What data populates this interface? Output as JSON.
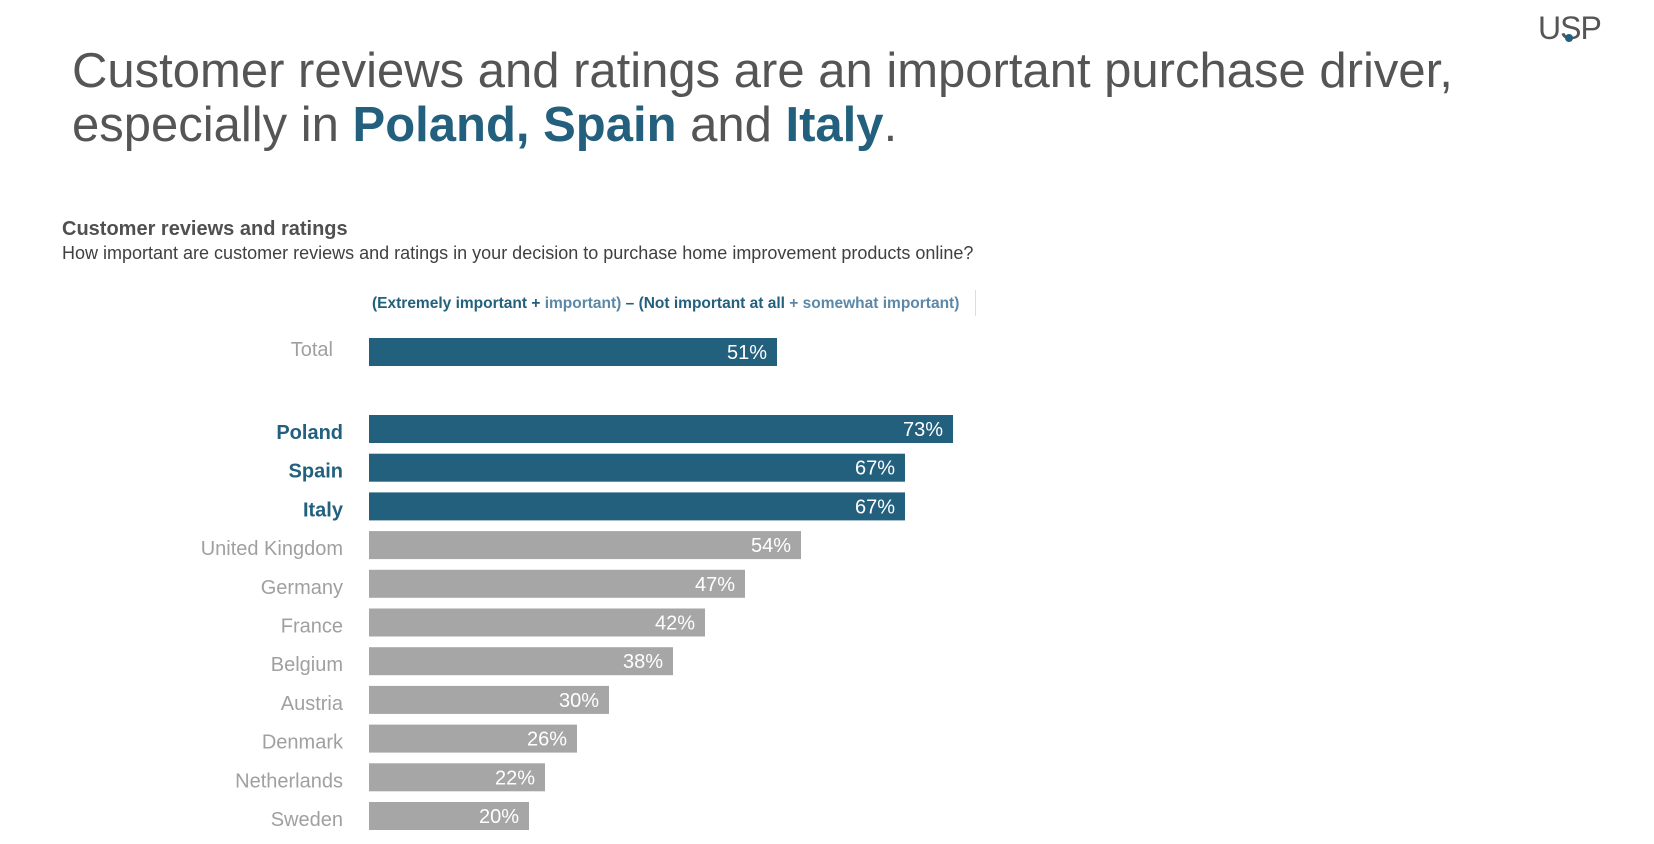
{
  "logo": {
    "text": "USP"
  },
  "headline": {
    "line1": "Customer reviews and ratings are an important purchase driver,",
    "line2_prefix": "especially in ",
    "highlight1": "Poland, Spain",
    "connector": " and ",
    "highlight2": "Italy",
    "suffix": "."
  },
  "colors": {
    "highlight": "#22607e",
    "grey_bar": "#a6a6a6",
    "grey_label": "#a0a0a0",
    "text": "#555555"
  },
  "chart_data": {
    "type": "bar",
    "orientation": "horizontal",
    "title": "Customer reviews and ratings",
    "subtitle": "How important are customer reviews and ratings in your decision to purchase home improvement products online?",
    "legend": {
      "part1": "(Extremely important + ",
      "part2": "important)",
      "part3": " – (Not important at all ",
      "part4": "+ somewhat important)"
    },
    "xlabel": "",
    "ylabel": "",
    "xlim": [
      0,
      100
    ],
    "grid": false,
    "unit": "%",
    "categories": [
      "Total",
      "Poland",
      "Spain",
      "Italy",
      "United Kingdom",
      "Germany",
      "France",
      "Belgium",
      "Austria",
      "Denmark",
      "Netherlands",
      "Sweden"
    ],
    "values": [
      51,
      73,
      67,
      67,
      54,
      47,
      42,
      38,
      30,
      26,
      22,
      20
    ],
    "highlight": [
      true,
      true,
      true,
      true,
      false,
      false,
      false,
      false,
      false,
      false,
      false,
      false
    ],
    "label_style": [
      "total",
      "bold",
      "bold",
      "bold",
      "normal",
      "normal",
      "normal",
      "normal",
      "normal",
      "normal",
      "normal",
      "normal"
    ]
  }
}
